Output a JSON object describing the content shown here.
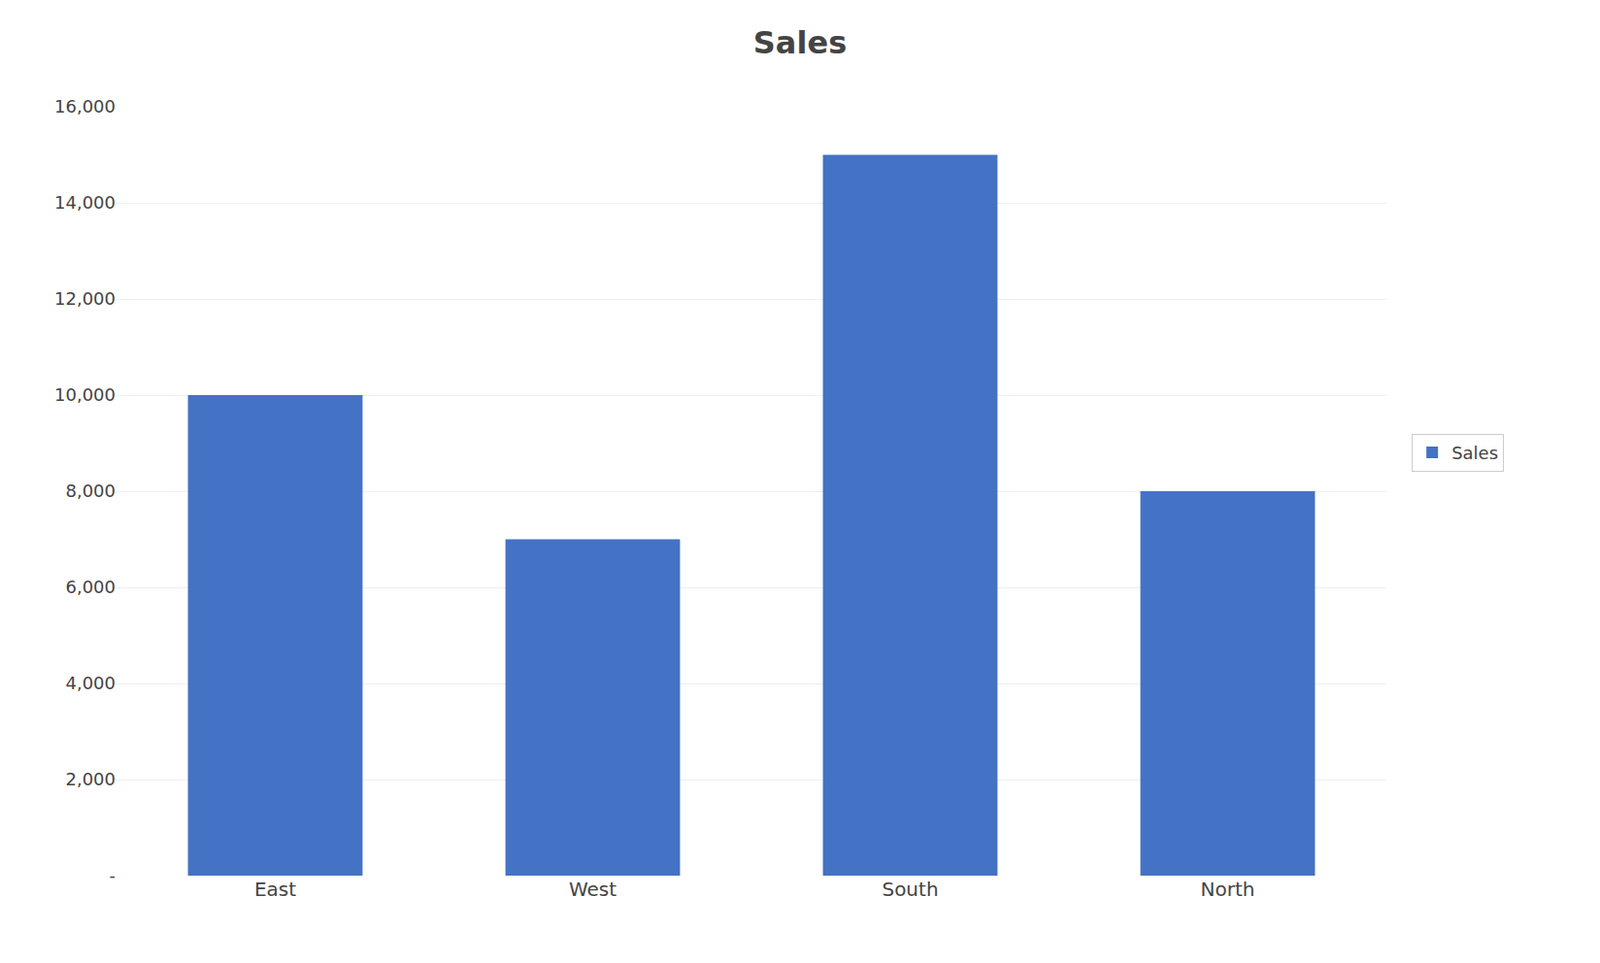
{
  "chart_data": {
    "type": "bar",
    "title": "Sales",
    "categories": [
      "East",
      "West",
      "South",
      "North"
    ],
    "series": [
      {
        "name": "Sales",
        "color": "#4472C4",
        "values": [
          10000,
          7000,
          15000,
          8000
        ]
      }
    ],
    "ylim": [
      0,
      16000
    ],
    "yticks": [
      {
        "value": 0,
        "label": "-"
      },
      {
        "value": 2000,
        "label": "2,000"
      },
      {
        "value": 4000,
        "label": "4,000"
      },
      {
        "value": 6000,
        "label": "6,000"
      },
      {
        "value": 8000,
        "label": "8,000"
      },
      {
        "value": 10000,
        "label": "10,000"
      },
      {
        "value": 12000,
        "label": "12,000"
      },
      {
        "value": 14000,
        "label": "14,000"
      },
      {
        "value": 16000,
        "label": "16,000"
      }
    ],
    "grid": true,
    "legend": "right"
  }
}
